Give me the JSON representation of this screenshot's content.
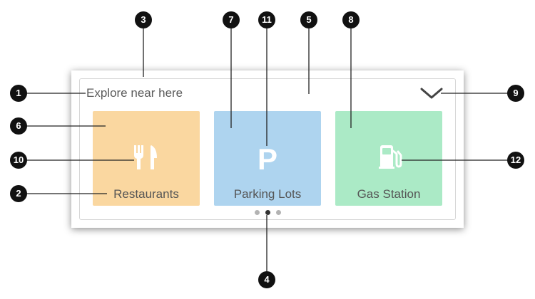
{
  "panel": {
    "title": "Explore near here",
    "expand_icon": "chevron-down-icon"
  },
  "tiles": [
    {
      "label": "Restaurants",
      "icon": "fork-knife-icon",
      "color": "#fad7a0"
    },
    {
      "label": "Parking Lots",
      "icon": "parking-icon",
      "color": "#aed4ef"
    },
    {
      "label": "Gas Station",
      "icon": "gas-pump-icon",
      "color": "#abeac6"
    }
  ],
  "pager": {
    "page_count": 3,
    "active_page": 2
  },
  "callouts": [
    "1",
    "2",
    "3",
    "4",
    "5",
    "6",
    "7",
    "8",
    "9",
    "10",
    "11",
    "12"
  ],
  "colors": {
    "callout": "#111111",
    "dot_active": "#333333",
    "dot_inactive": "#b3b3b3"
  }
}
